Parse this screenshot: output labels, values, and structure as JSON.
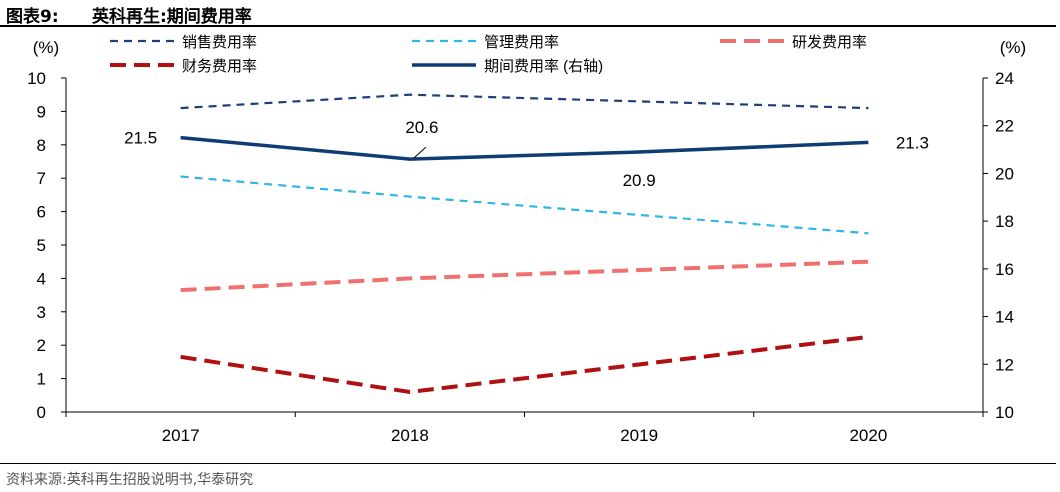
{
  "header": {
    "figure_label": "图表9:",
    "title": "英科再生:期间费用率"
  },
  "source": "资料来源:英科再生招股说明书,华泰研究",
  "colors": {
    "sales": "#1f3f7a",
    "admin": "#33b5e5",
    "rd": "#f07070",
    "finance": "#b01010",
    "total": "#0f3c73"
  },
  "chart_data": {
    "type": "line",
    "categories": [
      "2017",
      "2018",
      "2019",
      "2020"
    ],
    "y_left": {
      "label": "(%)",
      "lim": [
        0,
        10
      ],
      "ticks": [
        "0",
        "1",
        "2",
        "3",
        "4",
        "5",
        "6",
        "7",
        "8",
        "9",
        "10"
      ]
    },
    "y_right": {
      "label": "(%)",
      "lim": [
        10,
        24
      ],
      "ticks": [
        "10",
        "12",
        "14",
        "16",
        "18",
        "20",
        "22",
        "24"
      ]
    },
    "series": [
      {
        "key": "sales",
        "name": "销售费用率",
        "axis": "left",
        "style": "dash-thin",
        "values": [
          9.1,
          9.5,
          null,
          9.1
        ]
      },
      {
        "key": "admin",
        "name": "管理费用率",
        "axis": "left",
        "style": "dash-thin",
        "values": [
          7.05,
          6.45,
          null,
          5.35
        ]
      },
      {
        "key": "rd",
        "name": "研发费用率",
        "axis": "left",
        "style": "dash-thick",
        "values": [
          3.65,
          4.0,
          null,
          4.5
        ]
      },
      {
        "key": "finance",
        "name": "财务费用率",
        "axis": "left",
        "style": "dash-thick",
        "values": [
          1.65,
          0.6,
          null,
          2.25
        ]
      },
      {
        "key": "total",
        "name": "期间费用率 (右轴)",
        "axis": "right",
        "style": "solid",
        "values": [
          21.5,
          20.6,
          20.9,
          21.3
        ],
        "labels": [
          "21.5",
          "20.6",
          "20.9",
          "21.3"
        ]
      }
    ],
    "legend_position": "top",
    "grid": false
  }
}
